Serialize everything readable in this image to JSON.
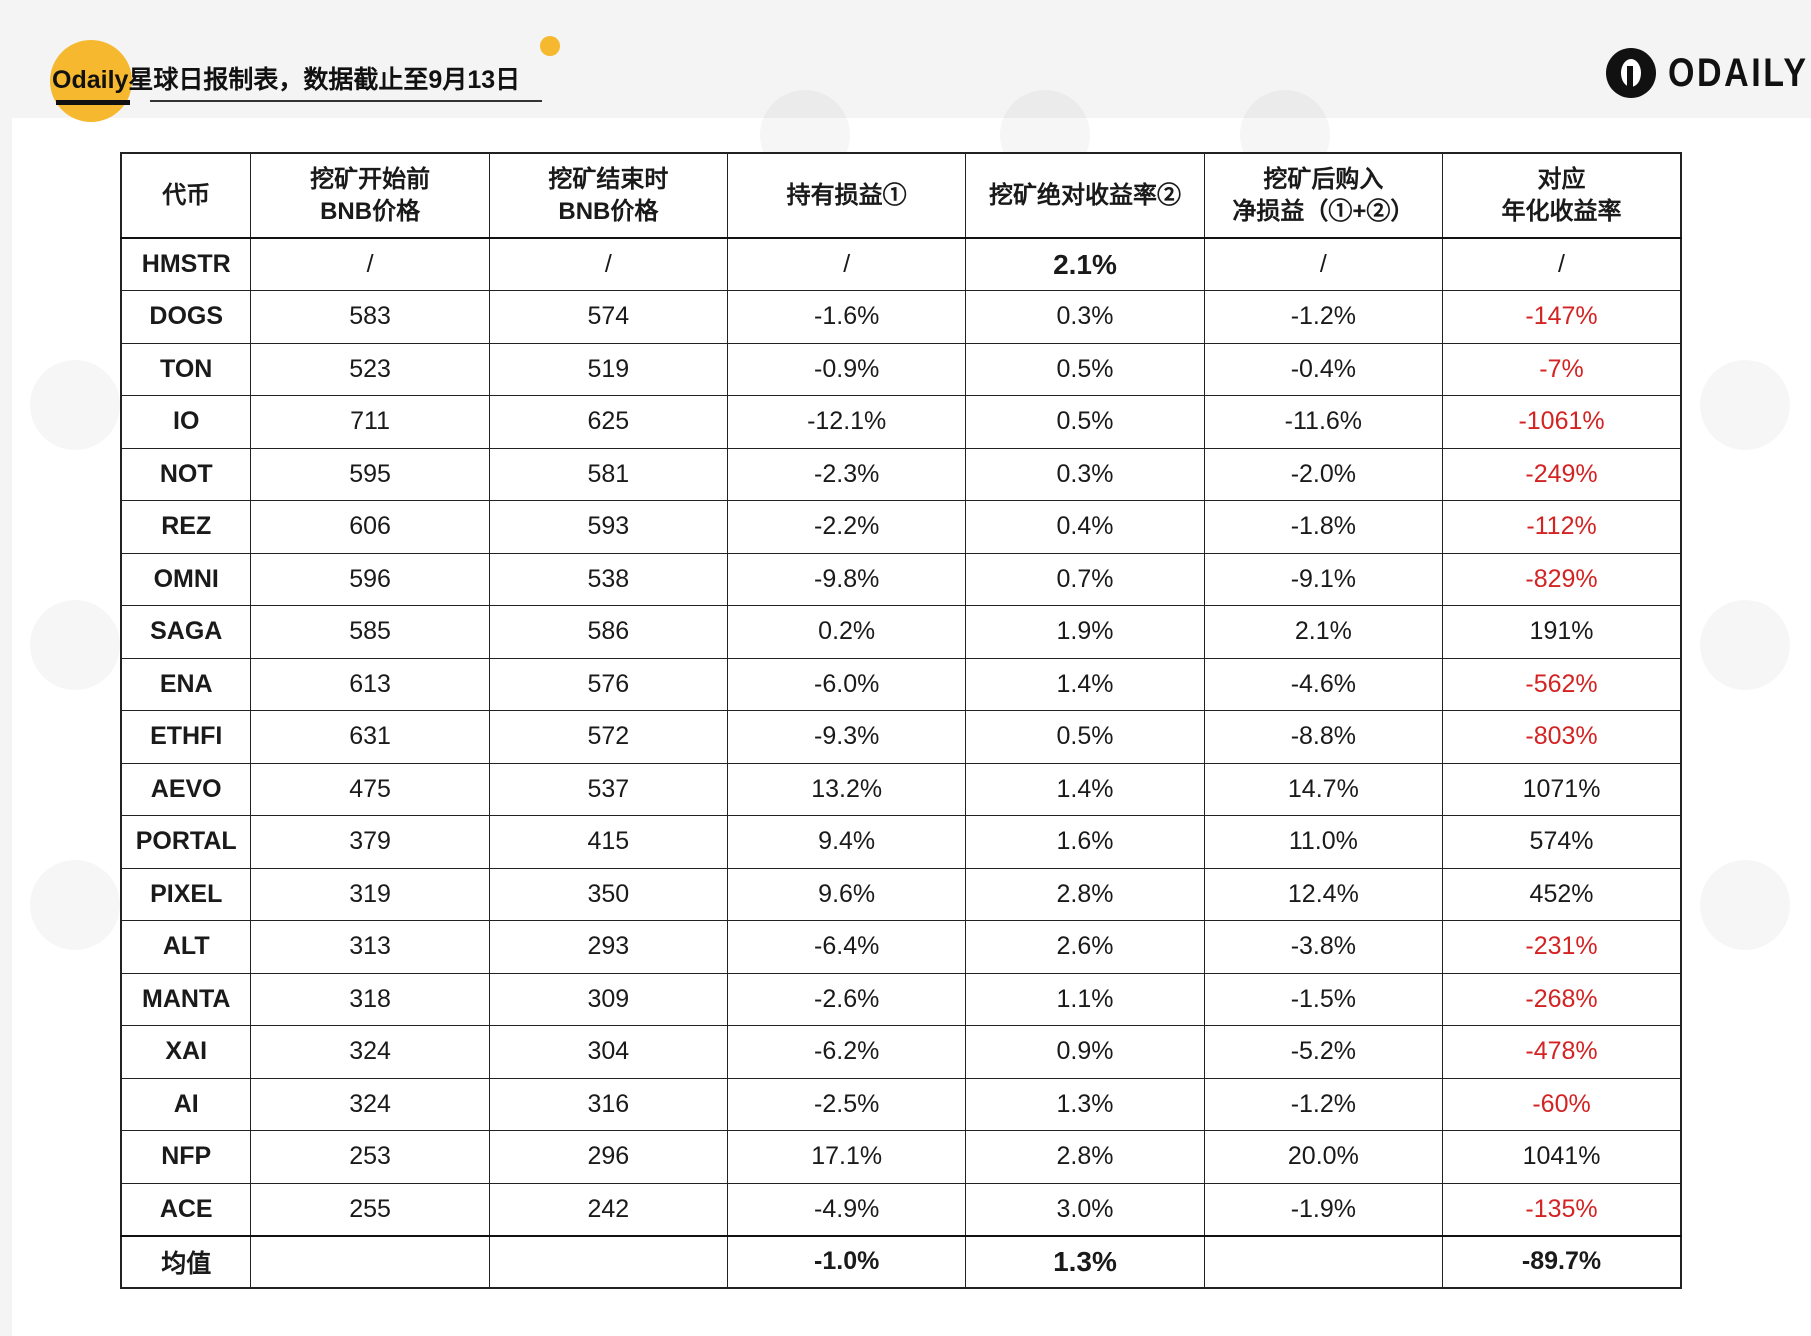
{
  "header": {
    "title": "Odaily星球日报制表，数据截止至9月13日",
    "logo_text": "ODAILY"
  },
  "colors": {
    "accent": "#f5b82e",
    "negative": "#d32323",
    "text": "#1a1a1a"
  },
  "table": {
    "headers": [
      "代币",
      "挖矿开始前\nBNB价格",
      "挖矿结束时\nBNB价格",
      "持有损益①",
      "挖矿绝对收益率②",
      "挖矿后购入\n净损益（①+②）",
      "对应\n年化收益率"
    ],
    "rows": [
      [
        "HMSTR",
        "/",
        "/",
        "/",
        "2.1%",
        "/",
        "/"
      ],
      [
        "DOGS",
        "583",
        "574",
        "-1.6%",
        "0.3%",
        "-1.2%",
        "-147%"
      ],
      [
        "TON",
        "523",
        "519",
        "-0.9%",
        "0.5%",
        "-0.4%",
        "-7%"
      ],
      [
        "IO",
        "711",
        "625",
        "-12.1%",
        "0.5%",
        "-11.6%",
        "-1061%"
      ],
      [
        "NOT",
        "595",
        "581",
        "-2.3%",
        "0.3%",
        "-2.0%",
        "-249%"
      ],
      [
        "REZ",
        "606",
        "593",
        "-2.2%",
        "0.4%",
        "-1.8%",
        "-112%"
      ],
      [
        "OMNI",
        "596",
        "538",
        "-9.8%",
        "0.7%",
        "-9.1%",
        "-829%"
      ],
      [
        "SAGA",
        "585",
        "586",
        "0.2%",
        "1.9%",
        "2.1%",
        "191%"
      ],
      [
        "ENA",
        "613",
        "576",
        "-6.0%",
        "1.4%",
        "-4.6%",
        "-562%"
      ],
      [
        "ETHFI",
        "631",
        "572",
        "-9.3%",
        "0.5%",
        "-8.8%",
        "-803%"
      ],
      [
        "AEVO",
        "475",
        "537",
        "13.2%",
        "1.4%",
        "14.7%",
        "1071%"
      ],
      [
        "PORTAL",
        "379",
        "415",
        "9.4%",
        "1.6%",
        "11.0%",
        "574%"
      ],
      [
        "PIXEL",
        "319",
        "350",
        "9.6%",
        "2.8%",
        "12.4%",
        "452%"
      ],
      [
        "ALT",
        "313",
        "293",
        "-6.4%",
        "2.6%",
        "-3.8%",
        "-231%"
      ],
      [
        "MANTA",
        "318",
        "309",
        "-2.6%",
        "1.1%",
        "-1.5%",
        "-268%"
      ],
      [
        "XAI",
        "324",
        "304",
        "-6.2%",
        "0.9%",
        "-5.2%",
        "-478%"
      ],
      [
        "AI",
        "324",
        "316",
        "-2.5%",
        "1.3%",
        "-1.2%",
        "-60%"
      ],
      [
        "NFP",
        "253",
        "296",
        "17.1%",
        "2.8%",
        "20.0%",
        "1041%"
      ],
      [
        "ACE",
        "255",
        "242",
        "-4.9%",
        "3.0%",
        "-1.9%",
        "-135%"
      ]
    ],
    "average": [
      "均值",
      "",
      "",
      "-1.0%",
      "1.3%",
      "",
      "-89.7%"
    ]
  }
}
